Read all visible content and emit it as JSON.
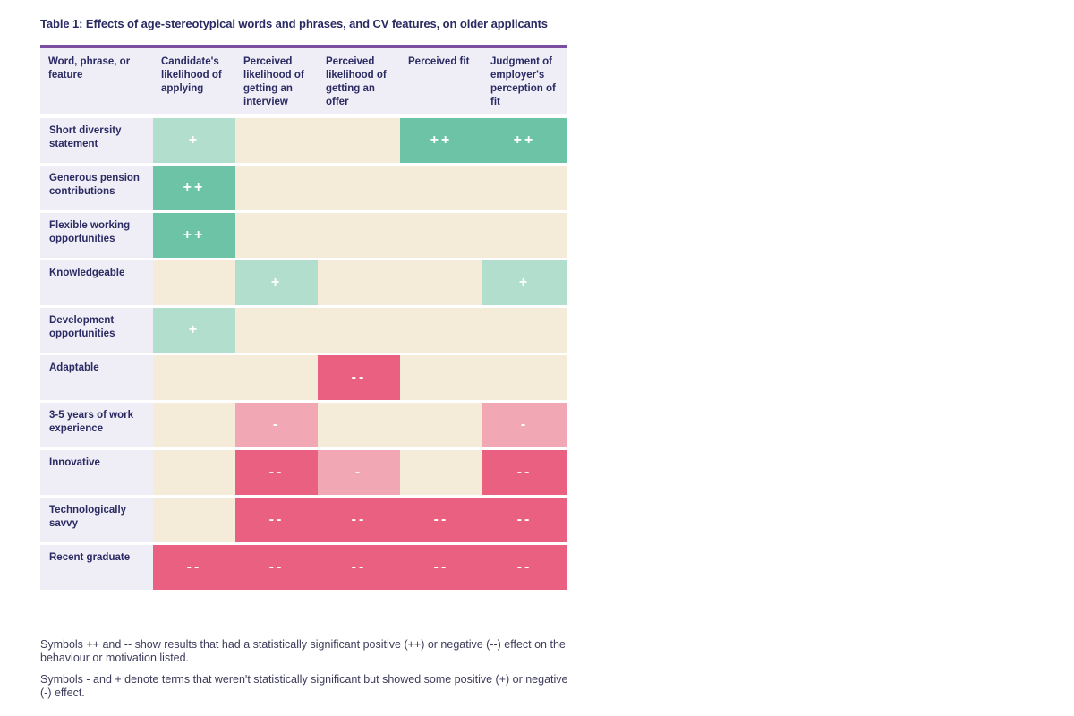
{
  "title": "Table 1: Effects of age-stereotypical words and phrases, and CV features, on older applicants",
  "headers": [
    "Word, phrase, or feature",
    "Candidate's likelihood of applying",
    "Perceived likelihood of getting an interview",
    "Perceived likelihood of getting an offer",
    "Perceived fit",
    "Judgment of employer's perception of fit"
  ],
  "rows": [
    {
      "label": "Short diversity statement",
      "effects": [
        "+",
        "",
        "",
        "++",
        "++"
      ]
    },
    {
      "label": "Generous pension contributions",
      "effects": [
        "++",
        "",
        "",
        "",
        ""
      ]
    },
    {
      "label": "Flexible working opportunities",
      "effects": [
        "++",
        "",
        "",
        "",
        ""
      ]
    },
    {
      "label": "Knowledgeable",
      "effects": [
        "",
        "+",
        "",
        "",
        "+"
      ]
    },
    {
      "label": "Development opportunities",
      "effects": [
        "+",
        "",
        "",
        "",
        ""
      ]
    },
    {
      "label": "Adaptable",
      "effects": [
        "",
        "",
        "--",
        "",
        ""
      ]
    },
    {
      "label": "3-5 years of work experience",
      "effects": [
        "",
        "-",
        "",
        "",
        "-"
      ]
    },
    {
      "label": "Innovative",
      "effects": [
        "",
        "--",
        "-",
        "",
        "--"
      ]
    },
    {
      "label": "Technologically savvy",
      "effects": [
        "",
        "--",
        "--",
        "--",
        "--"
      ]
    },
    {
      "label": "Recent graduate",
      "effects": [
        "--",
        "--",
        "--",
        "--",
        "--"
      ]
    }
  ],
  "notes": [
    "Symbols ++ and -- show results that had a statistically significant positive (++) or negative (--) effect on the behaviour or motivation listed.",
    "Symbols - and + denote terms that weren't statistically significant but showed some positive (+) or negative (-) effect."
  ],
  "colors": {
    "neutral": "#f4ecd8",
    "strong_positive": "#6cc3a6",
    "weak_positive": "#b2dfcd",
    "strong_negative": "#ea6080",
    "weak_negative": "#f2a7b5",
    "header_band": "#7b4ea0"
  }
}
